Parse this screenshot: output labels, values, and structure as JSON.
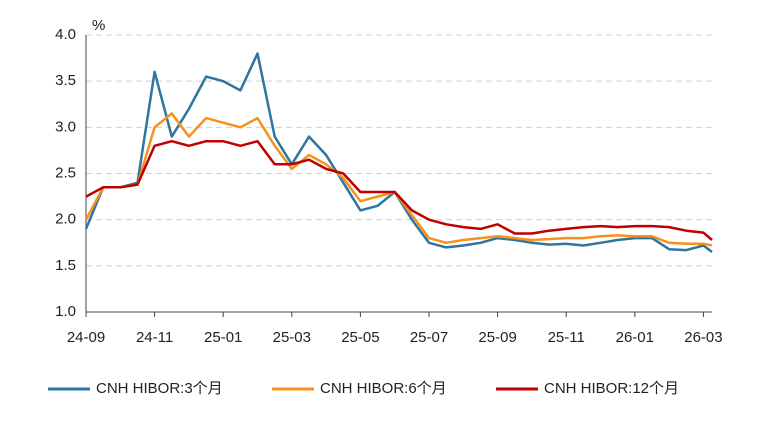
{
  "chart_data": {
    "type": "line",
    "unit_label": "%",
    "x": [
      0,
      0.5,
      1,
      1.5,
      2,
      2.5,
      3,
      3.5,
      4,
      4.5,
      5,
      5.5,
      6,
      6.5,
      7,
      7.5,
      8,
      8.5,
      9,
      9.5,
      10,
      10.5,
      11,
      11.5,
      12,
      12.5,
      13,
      13.5,
      14,
      14.5,
      15,
      15.5,
      16,
      16.5,
      17,
      17.5,
      18,
      18.25
    ],
    "xlim": [
      0,
      18.25
    ],
    "xticks": [
      {
        "value": 0,
        "label": "24-09"
      },
      {
        "value": 2,
        "label": "24-11"
      },
      {
        "value": 4,
        "label": "25-01"
      },
      {
        "value": 6,
        "label": "25-03"
      },
      {
        "value": 8,
        "label": "25-05"
      },
      {
        "value": 10,
        "label": "25-07"
      },
      {
        "value": 12,
        "label": "25-09"
      },
      {
        "value": 14,
        "label": "25-11"
      },
      {
        "value": 16,
        "label": "26-01"
      },
      {
        "value": 18,
        "label": "26-03"
      }
    ],
    "ylim": [
      1,
      4
    ],
    "yticks": [
      {
        "value": 1,
        "label": "1.0"
      },
      1.5,
      {
        "value": 2,
        "label": "2.0"
      },
      2.5,
      {
        "value": 3,
        "label": "3.0"
      },
      3.5,
      {
        "value": 4,
        "label": "4.0"
      }
    ],
    "grid": true,
    "legend": "bottom",
    "series": [
      {
        "name": "CNH HIBOR:3个月",
        "color": "#2e75a0",
        "values": [
          1.9,
          2.35,
          2.35,
          2.4,
          3.6,
          2.9,
          3.2,
          3.55,
          3.5,
          3.4,
          3.8,
          2.9,
          2.6,
          2.9,
          2.7,
          2.4,
          2.1,
          2.15,
          2.3,
          2.0,
          1.75,
          1.7,
          1.72,
          1.75,
          1.8,
          1.78,
          1.75,
          1.73,
          1.74,
          1.72,
          1.75,
          1.78,
          1.8,
          1.8,
          1.68,
          1.67,
          1.72,
          1.65
        ]
      },
      {
        "name": "CNH HIBOR:6个月",
        "color": "#f5921e",
        "values": [
          2.0,
          2.35,
          2.35,
          2.38,
          3.0,
          3.15,
          2.9,
          3.1,
          3.05,
          3.0,
          3.1,
          2.8,
          2.55,
          2.7,
          2.6,
          2.45,
          2.2,
          2.25,
          2.3,
          2.05,
          1.8,
          1.75,
          1.78,
          1.8,
          1.82,
          1.8,
          1.78,
          1.79,
          1.8,
          1.8,
          1.82,
          1.83,
          1.82,
          1.82,
          1.75,
          1.74,
          1.74,
          1.72
        ]
      },
      {
        "name": "CNH HIBOR:12个月",
        "color": "#c00000",
        "values": [
          2.25,
          2.35,
          2.35,
          2.38,
          2.8,
          2.85,
          2.8,
          2.85,
          2.85,
          2.8,
          2.85,
          2.6,
          2.6,
          2.65,
          2.55,
          2.5,
          2.3,
          2.3,
          2.3,
          2.1,
          2.0,
          1.95,
          1.92,
          1.9,
          1.95,
          1.85,
          1.85,
          1.88,
          1.9,
          1.92,
          1.93,
          1.92,
          1.93,
          1.93,
          1.92,
          1.88,
          1.86,
          1.78
        ]
      }
    ]
  }
}
